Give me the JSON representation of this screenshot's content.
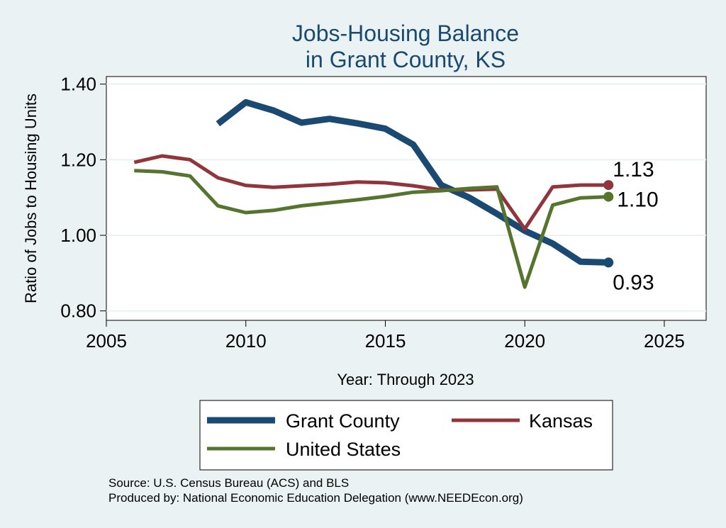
{
  "chart_data": {
    "type": "line",
    "title": [
      "Jobs-Housing Balance",
      "in Grant County, KS"
    ],
    "xlabel": "Year: Through 2023",
    "ylabel": "Ratio of Jobs to Housing Units",
    "xlim": [
      2005,
      2026.5
    ],
    "ylim": [
      0.775,
      1.42
    ],
    "xticks": [
      2005,
      2010,
      2015,
      2020,
      2025
    ],
    "yticks": [
      0.8,
      1.0,
      1.2,
      1.4
    ],
    "ytick_labels": [
      "0.80",
      "1.00",
      "1.20",
      "1.40"
    ],
    "grid": true,
    "series": [
      {
        "name": "Grant County",
        "color": "#1a4a72",
        "x": [
          2009,
          2010,
          2011,
          2012,
          2013,
          2014,
          2015,
          2016,
          2017,
          2018,
          2019,
          2020,
          2021,
          2022,
          2023
        ],
        "values": [
          1.295,
          1.352,
          1.33,
          1.298,
          1.308,
          1.296,
          1.282,
          1.24,
          1.133,
          1.1,
          1.057,
          1.012,
          0.978,
          0.93,
          0.928
        ],
        "end_label": "0.93"
      },
      {
        "name": "Kansas",
        "color": "#90353b",
        "x": [
          2006,
          2007,
          2008,
          2009,
          2010,
          2011,
          2012,
          2013,
          2014,
          2015,
          2016,
          2017,
          2018,
          2019,
          2020,
          2021,
          2022,
          2023
        ],
        "values": [
          1.193,
          1.21,
          1.2,
          1.152,
          1.132,
          1.127,
          1.131,
          1.135,
          1.141,
          1.139,
          1.131,
          1.12,
          1.12,
          1.122,
          1.017,
          1.128,
          1.133,
          1.133
        ],
        "end_label": "1.13"
      },
      {
        "name": "United States",
        "color": "#55752f",
        "x": [
          2006,
          2007,
          2008,
          2009,
          2010,
          2011,
          2012,
          2013,
          2014,
          2015,
          2016,
          2017,
          2018,
          2019,
          2020,
          2021,
          2022,
          2023
        ],
        "values": [
          1.171,
          1.168,
          1.157,
          1.078,
          1.06,
          1.066,
          1.078,
          1.086,
          1.094,
          1.103,
          1.114,
          1.118,
          1.124,
          1.128,
          0.863,
          1.08,
          1.099,
          1.102
        ],
        "end_label": "1.10"
      }
    ],
    "legend": {
      "placement": "bottom",
      "entries": [
        "Grant County",
        "Kansas",
        "United States"
      ]
    },
    "footnotes": [
      "Source: U.S. Census Bureau (ACS) and BLS",
      "Produced by: National Economic Education Delegation (www.NEEDEcon.org)"
    ]
  }
}
